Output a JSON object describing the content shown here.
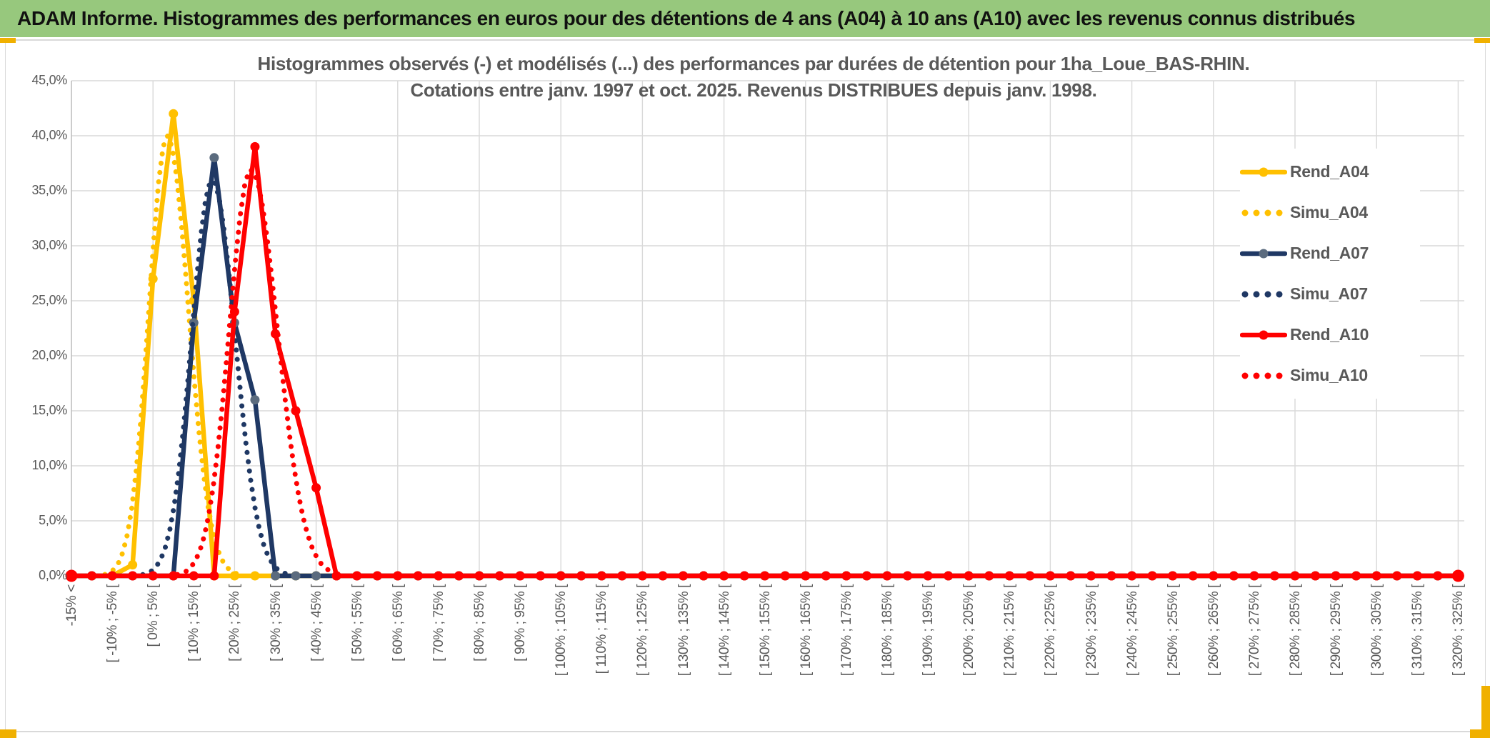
{
  "banner": {
    "title": "ADAM Informe. Histogrammes des performances en euros pour des détentions de 4 ans (A04) à 10 ans (A10) avec les revenus connus distribués"
  },
  "chart_data": {
    "type": "line",
    "title": "Histogrammes observés (-) et modélisés (...) des performances par durées de détention pour 1ha_Loue_BAS-RHIN.",
    "subtitle": "Cotations entre janv. 1997 et oct. 2025. Revenus DISTRIBUES depuis janv. 1998.",
    "x_axis": {
      "n_bins": 69,
      "bin_width_pct": 5,
      "bins_description": "bin 0 = below -15%, then 5%-wide performance bins from -15% up to 325%; one tick label every 2 bins",
      "labels_every": 2,
      "labels": [
        "-15% <",
        "[ -10% ; -5% [",
        "[ 0% ; 5% [",
        "[ 10% ; 15% [",
        "[ 20% ; 25% [",
        "[ 30% ; 35% [",
        "[ 40% ; 45% [",
        "[ 50% ; 55% [",
        "[ 60% ; 65% [",
        "[ 70% ; 75% [",
        "[ 80% ; 85% [",
        "[ 90% ; 95% [",
        "[ 100% ; 105% [",
        "[ 110% ; 115% [",
        "[ 120% ; 125% [",
        "[ 130% ; 135% [",
        "[ 140% ; 145% [",
        "[ 150% ; 155% [",
        "[ 160% ; 165% [",
        "[ 170% ; 175% [",
        "[ 180% ; 185% [",
        "[ 190% ; 195% [",
        "[ 200% ; 205% [",
        "[ 210% ; 215% [",
        "[ 220% ; 225% [",
        "[ 230% ; 235% [",
        "[ 240% ; 245% [",
        "[ 250% ; 255% [",
        "[ 260% ; 265% [",
        "[ 270% ; 275% [",
        "[ 280% ; 285% [",
        "[ 290% ; 295% [",
        "[ 300% ; 305% [",
        "[ 310% ; 315% [",
        "[ 320% ; 325% ["
      ]
    },
    "y_axis": {
      "min": 0,
      "max": 45,
      "step": 5,
      "tick_labels": [
        "45,0%",
        "40,0%",
        "35,0%",
        "30,0%",
        "25,0%",
        "20,0%",
        "15,0%",
        "10,0%",
        "5,0%",
        "0,0%"
      ]
    },
    "grid": {
      "horizontal_step_pct": 5,
      "vertical_step_bins": 4,
      "color": "#D9D9D9"
    },
    "legend": {
      "position": "right"
    },
    "series": [
      {
        "name": "Rend_A04",
        "kind": "observed",
        "line": "solid",
        "color": "#FFC000",
        "marker_color": "#FFC000",
        "values_by_bin": {
          "3": 1,
          "4": 27,
          "5": 42,
          "6": 25
        },
        "other_bins": 0
      },
      {
        "name": "Simu_A04",
        "kind": "model",
        "line": "dotted",
        "color": "#FFC000",
        "model": {
          "peak_pct": 40,
          "mean_pct": 6,
          "sigma_left_pct": 4.5,
          "sigma_right_pct": 5.2
        }
      },
      {
        "name": "Rend_A07",
        "kind": "observed",
        "line": "solid",
        "color": "#1F3864",
        "marker_color": "#5B6B7E",
        "values_by_bin": {
          "6": 23,
          "7": 38,
          "8": 23,
          "9": 16
        },
        "other_bins": 0
      },
      {
        "name": "Simu_A07",
        "kind": "model",
        "line": "dotted",
        "color": "#1F3864",
        "model": {
          "peak_pct": 36,
          "mean_pct": 17,
          "sigma_left_pct": 5.0,
          "sigma_right_pct": 5.6
        }
      },
      {
        "name": "Rend_A10",
        "kind": "observed",
        "line": "solid",
        "color": "#FF0000",
        "marker_color": "#FF0000",
        "values_by_bin": {
          "8": 24,
          "9": 39,
          "10": 22,
          "11": 15,
          "12": 8
        },
        "other_bins": 0
      },
      {
        "name": "Simu_A10",
        "kind": "model",
        "line": "dotted",
        "color": "#FF0000",
        "model": {
          "peak_pct": 37,
          "mean_pct": 26.5,
          "sigma_left_pct": 5.3,
          "sigma_right_pct": 6.5
        }
      }
    ]
  },
  "colors": {
    "banner_green": "#97C87D",
    "accent_gold": "#F0B000",
    "grid": "#D9D9D9",
    "axis_line": "#BFBFBF",
    "text_gray": "#595959"
  }
}
